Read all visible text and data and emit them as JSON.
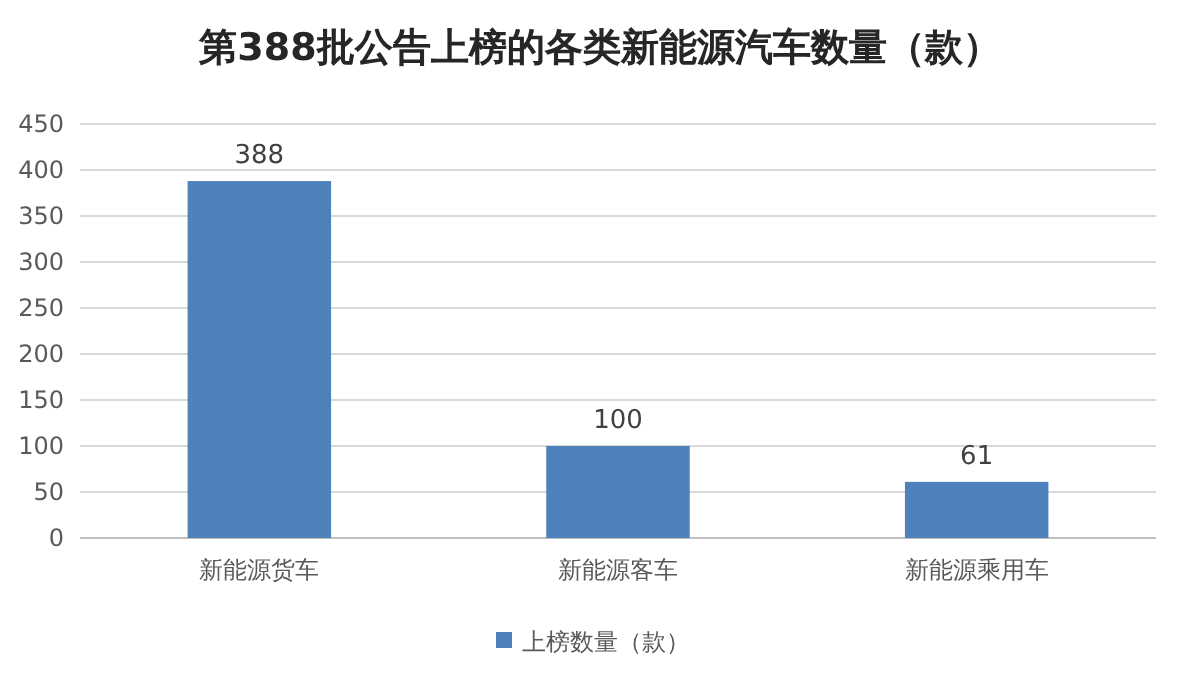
{
  "chart_data": {
    "type": "bar",
    "title": "第388批公告上榜的各类新能源汽车数量（款）",
    "categories": [
      "新能源货车",
      "新能源客车",
      "新能源乘用车"
    ],
    "series": [
      {
        "name": "上榜数量（款）",
        "color": "#4f81bd",
        "values": [
          388,
          100,
          61
        ]
      }
    ],
    "ylim": [
      0,
      450
    ],
    "yticks": [
      0,
      50,
      100,
      150,
      200,
      250,
      300,
      350,
      400,
      450
    ],
    "grid": "y",
    "legend": "bottom",
    "data_labels": true
  }
}
